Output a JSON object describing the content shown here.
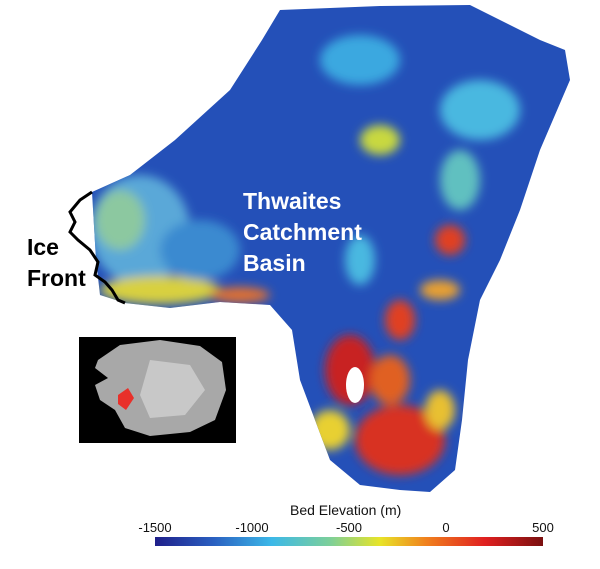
{
  "map": {
    "region_label": [
      "Thwaites",
      "Catchment",
      "Basin"
    ],
    "front_label": [
      "Ice",
      "Front"
    ],
    "inset": "Antarctica location map with basin highlighted",
    "colors": {
      "basin_highlight": "#e8302a",
      "ice_front_line": "#000000"
    }
  },
  "colorbar": {
    "title": "Bed Elevation (m)",
    "ticks": [
      "-1500",
      "-1000",
      "-500",
      "0",
      "500"
    ],
    "range": [
      -1500,
      500
    ],
    "colormap": [
      "#1f1f8a",
      "#2a5fc0",
      "#3cb8e8",
      "#7ccf9a",
      "#e8e428",
      "#f0801e",
      "#e02020",
      "#7a1010"
    ]
  }
}
